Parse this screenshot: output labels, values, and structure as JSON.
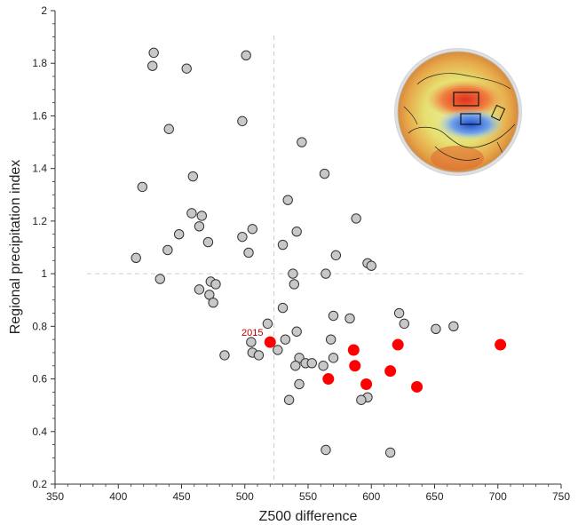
{
  "chart_data": {
    "type": "scatter",
    "xlabel": "Z500 difference",
    "ylabel": "Regional precipitation index",
    "xlim": [
      350,
      750
    ],
    "ylim": [
      0.2,
      2.0
    ],
    "xticks": [
      350,
      400,
      450,
      500,
      550,
      600,
      650,
      700,
      750
    ],
    "yticks": [
      0.2,
      0.4,
      0.6,
      0.8,
      1.0,
      1.2,
      1.4,
      1.6,
      1.8,
      2.0
    ],
    "ytick_labels": [
      "0.2",
      "0.4",
      "0.6",
      "0.8",
      "1",
      "1.2",
      "1.4",
      "1.6",
      "1.8",
      "2"
    ],
    "reference_lines": {
      "x": 523,
      "y": 1.0,
      "style": "dashed",
      "color": "#cccccc"
    },
    "colors": {
      "grey_point": "#c8c8c8",
      "grey_edge": "#333333",
      "red_point": "#ff0000",
      "annotation": "#c00000"
    },
    "annotations": [
      {
        "text": "2015",
        "x": 520,
        "y": 0.74
      }
    ],
    "inset": {
      "description_icon": "northern-hemisphere-z500-map-icon"
    },
    "series": [
      {
        "marker": "grey",
        "points": [
          [
            428,
            1.84
          ],
          [
            427,
            1.79
          ],
          [
            454,
            1.78
          ],
          [
            501,
            1.83
          ],
          [
            498,
            1.58
          ],
          [
            440,
            1.55
          ],
          [
            545,
            1.5
          ],
          [
            563,
            1.38
          ],
          [
            459,
            1.37
          ],
          [
            419,
            1.33
          ],
          [
            534,
            1.28
          ],
          [
            458,
            1.23
          ],
          [
            466,
            1.22
          ],
          [
            588,
            1.21
          ],
          [
            464,
            1.18
          ],
          [
            506,
            1.17
          ],
          [
            448,
            1.15
          ],
          [
            541,
            1.16
          ],
          [
            498,
            1.14
          ],
          [
            471,
            1.12
          ],
          [
            530,
            1.11
          ],
          [
            439,
            1.09
          ],
          [
            503,
            1.08
          ],
          [
            572,
            1.07
          ],
          [
            414,
            1.06
          ],
          [
            597,
            1.04
          ],
          [
            600,
            1.03
          ],
          [
            538,
            1.0
          ],
          [
            564,
            1.0
          ],
          [
            433,
            0.98
          ],
          [
            473,
            0.97
          ],
          [
            477,
            0.96
          ],
          [
            539,
            0.96
          ],
          [
            464,
            0.94
          ],
          [
            472,
            0.92
          ],
          [
            475,
            0.89
          ],
          [
            530,
            0.87
          ],
          [
            622,
            0.85
          ],
          [
            570,
            0.84
          ],
          [
            583,
            0.83
          ],
          [
            626,
            0.81
          ],
          [
            518,
            0.81
          ],
          [
            665,
            0.8
          ],
          [
            651,
            0.79
          ],
          [
            541,
            0.78
          ],
          [
            568,
            0.75
          ],
          [
            532,
            0.75
          ],
          [
            505,
            0.74
          ],
          [
            526,
            0.71
          ],
          [
            506,
            0.7
          ],
          [
            511,
            0.69
          ],
          [
            484,
            0.69
          ],
          [
            543,
            0.68
          ],
          [
            570,
            0.68
          ],
          [
            548,
            0.66
          ],
          [
            553,
            0.66
          ],
          [
            540,
            0.65
          ],
          [
            562,
            0.65
          ],
          [
            543,
            0.58
          ],
          [
            597,
            0.53
          ],
          [
            592,
            0.52
          ],
          [
            535,
            0.52
          ],
          [
            564,
            0.33
          ],
          [
            615,
            0.32
          ]
        ]
      },
      {
        "marker": "red",
        "points": [
          [
            520,
            0.74
          ],
          [
            586,
            0.71
          ],
          [
            621,
            0.73
          ],
          [
            702,
            0.73
          ],
          [
            587,
            0.65
          ],
          [
            615,
            0.63
          ],
          [
            566,
            0.6
          ],
          [
            596,
            0.58
          ],
          [
            636,
            0.57
          ]
        ]
      }
    ]
  }
}
